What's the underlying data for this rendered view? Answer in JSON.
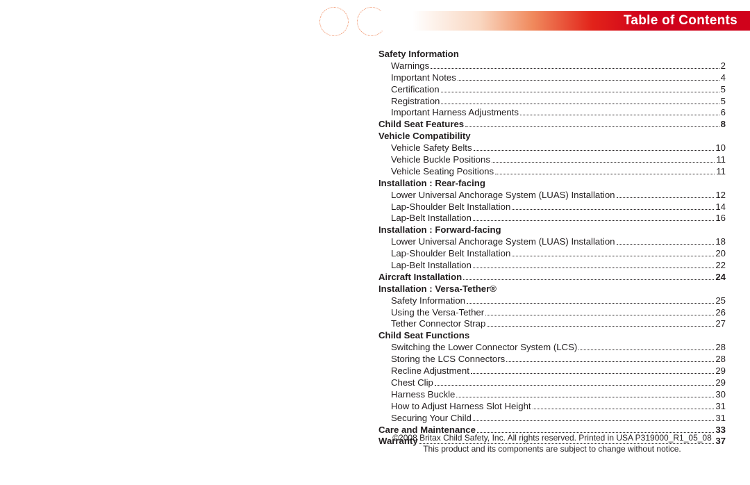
{
  "header": {
    "title": "Table of Contents"
  },
  "footer": {
    "line1": "©2008 Britax Child Safety, Inc. All rights reserved. Printed in USA P319000_R1_05_08",
    "line2": "This product and its components are subject to change without notice."
  },
  "toc": [
    {
      "type": "section",
      "label": "Safety Information"
    },
    {
      "type": "item",
      "label": "Warnings",
      "page": "2"
    },
    {
      "type": "item",
      "label": "Important Notes",
      "page": "4"
    },
    {
      "type": "item",
      "label": "Certification",
      "page": "5"
    },
    {
      "type": "item",
      "label": "Registration",
      "page": "5"
    },
    {
      "type": "item",
      "label": "Important Harness Adjustments",
      "page": "6"
    },
    {
      "type": "bold",
      "label": "Child Seat Features",
      "page": "8"
    },
    {
      "type": "section",
      "label": "Vehicle Compatibility"
    },
    {
      "type": "item",
      "label": "Vehicle Safety Belts",
      "page": "10"
    },
    {
      "type": "item",
      "label": "Vehicle Buckle Positions",
      "page": "11"
    },
    {
      "type": "item",
      "label": "Vehicle Seating Positions",
      "page": "11"
    },
    {
      "type": "section",
      "label": "Installation : Rear-facing"
    },
    {
      "type": "item",
      "label": "Lower Universal Anchorage System (LUAS) Installation",
      "page": "12"
    },
    {
      "type": "item",
      "label": "Lap-Shoulder Belt Installation",
      "page": "14"
    },
    {
      "type": "item",
      "label": "Lap-Belt Installation",
      "page": "16"
    },
    {
      "type": "section",
      "label": "Installation : Forward-facing"
    },
    {
      "type": "item",
      "label": "Lower Universal Anchorage System (LUAS) Installation",
      "page": "18"
    },
    {
      "type": "item",
      "label": "Lap-Shoulder Belt Installation",
      "page": "20"
    },
    {
      "type": "item",
      "label": "Lap-Belt Installation",
      "page": "22"
    },
    {
      "type": "bold",
      "label": "Aircraft Installation",
      "page": "24"
    },
    {
      "type": "section",
      "label": "Installation : Versa-Tether®"
    },
    {
      "type": "item",
      "label": "Safety Information",
      "page": "25"
    },
    {
      "type": "item",
      "label": "Using the Versa-Tether",
      "page": "26"
    },
    {
      "type": "item",
      "label": "Tether Connector Strap",
      "page": "27"
    },
    {
      "type": "section",
      "label": "Child Seat Functions"
    },
    {
      "type": "item",
      "label": "Switching the Lower Connector System (LCS)",
      "page": "28"
    },
    {
      "type": "item",
      "label": "Storing the LCS Connectors",
      "page": "28"
    },
    {
      "type": "item",
      "label": "Recline Adjustment",
      "page": "29"
    },
    {
      "type": "item",
      "label": "Chest Clip",
      "page": "29"
    },
    {
      "type": "item",
      "label": "Harness Buckle",
      "page": "30"
    },
    {
      "type": "item",
      "label": "How to Adjust Harness Slot Height",
      "page": "31"
    },
    {
      "type": "item",
      "label": "Securing Your Child",
      "page": "31"
    },
    {
      "type": "bold",
      "label": "Care and Maintenance",
      "page": "33"
    },
    {
      "type": "bold",
      "label": "Warranty",
      "page": "37"
    }
  ]
}
